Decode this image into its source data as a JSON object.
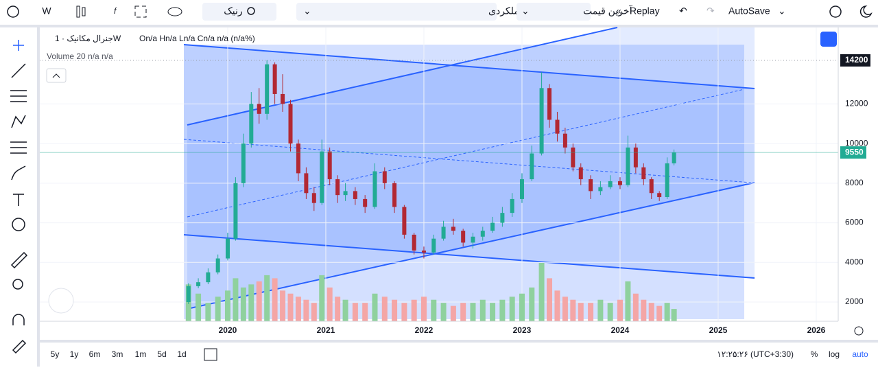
{
  "toolbar": {
    "interval": "W",
    "symbol": "رنیک",
    "chart_style": "عملکردی",
    "price_source": "آخرین قیمت",
    "replay": "Replay",
    "autosave": "AutoSave"
  },
  "chart_data": {
    "type": "candlestick",
    "title": "جنرال مکانیک · 1W",
    "ohlc_text": "On/a Hn/a Ln/a Cn/a n/a (n/a%)",
    "volume_label": "Volume 20 n/a n/a",
    "x": [
      2019.6,
      2019.7,
      2019.8,
      2019.9,
      2020.0,
      2020.08,
      2020.16,
      2020.24,
      2020.32,
      2020.4,
      2020.48,
      2020.56,
      2020.64,
      2020.72,
      2020.8,
      2020.88,
      2020.96,
      2021.04,
      2021.12,
      2021.2,
      2021.3,
      2021.4,
      2021.5,
      2021.6,
      2021.7,
      2021.8,
      2021.9,
      2022.0,
      2022.1,
      2022.2,
      2022.3,
      2022.4,
      2022.5,
      2022.6,
      2022.7,
      2022.8,
      2022.9,
      2023.0,
      2023.1,
      2023.2,
      2023.28,
      2023.36,
      2023.44,
      2023.52,
      2023.6,
      2023.7,
      2023.8,
      2023.9,
      2024.0,
      2024.08,
      2024.16,
      2024.24,
      2024.32,
      2024.4,
      2024.48,
      2024.55
    ],
    "open": [
      2000,
      2800,
      3000,
      3500,
      4200,
      5200,
      8000,
      10000,
      12000,
      11500,
      14000,
      12500,
      12000,
      10000,
      8500,
      7500,
      7000,
      9600,
      8200,
      7400,
      7600,
      7200,
      6800,
      8600,
      8000,
      6800,
      5400,
      4600,
      4500,
      5200,
      5800,
      5600,
      5000,
      5300,
      5600,
      6000,
      6500,
      7200,
      8200,
      9500,
      12800,
      11200,
      10500,
      9800,
      8800,
      8200,
      7600,
      7800,
      8100,
      7900,
      9800,
      8800,
      8200,
      7500,
      7300,
      9000
    ],
    "high": [
      2950,
      3200,
      3700,
      4400,
      5500,
      8300,
      10500,
      12600,
      12800,
      14200,
      14100,
      13500,
      12200,
      10200,
      8800,
      7800,
      10200,
      9800,
      8400,
      8000,
      7800,
      7400,
      9000,
      8800,
      8100,
      6900,
      5500,
      4800,
      5400,
      6100,
      6200,
      5700,
      5500,
      5800,
      6300,
      6800,
      7500,
      8500,
      9900,
      13600,
      13000,
      11600,
      10800,
      10000,
      9000,
      8400,
      8100,
      8400,
      8300,
      10400,
      10000,
      9000,
      8300,
      7600,
      9300,
      9700
    ],
    "low": [
      1900,
      2700,
      2900,
      3400,
      4100,
      5100,
      7800,
      9800,
      11000,
      11200,
      12000,
      11600,
      9600,
      8100,
      7200,
      6600,
      6900,
      7900,
      7000,
      7100,
      6900,
      6500,
      6700,
      7700,
      6500,
      5200,
      4400,
      4200,
      4400,
      5100,
      5400,
      4800,
      4700,
      5100,
      5500,
      5800,
      6300,
      7000,
      8100,
      9400,
      10800,
      10100,
      9500,
      8600,
      7900,
      7200,
      7400,
      7700,
      7700,
      7800,
      8500,
      7900,
      7200,
      7100,
      7200,
      8900
    ],
    "close": [
      2800,
      3000,
      3500,
      4200,
      5200,
      8000,
      10000,
      12000,
      11500,
      14000,
      12500,
      12000,
      10000,
      8500,
      7500,
      7000,
      9600,
      8200,
      7400,
      7600,
      7200,
      6800,
      8600,
      8000,
      6800,
      5400,
      4600,
      4500,
      5200,
      5800,
      5600,
      5000,
      5300,
      5600,
      6000,
      6500,
      7200,
      8200,
      9500,
      12800,
      11200,
      10500,
      9800,
      8800,
      8200,
      7600,
      7800,
      8100,
      7900,
      9800,
      8800,
      8200,
      7500,
      7300,
      9000,
      9550
    ],
    "volume": [
      60,
      45,
      30,
      40,
      50,
      70,
      55,
      60,
      65,
      75,
      70,
      50,
      45,
      40,
      35,
      30,
      75,
      55,
      40,
      35,
      30,
      30,
      45,
      40,
      35,
      30,
      35,
      40,
      35,
      30,
      25,
      30,
      30,
      35,
      30,
      35,
      40,
      45,
      55,
      95,
      70,
      50,
      40,
      35,
      30,
      30,
      35,
      30,
      35,
      65,
      45,
      35,
      30,
      25,
      30,
      20
    ],
    "up_color": "#22ab94",
    "down_color": "#b22833",
    "volume_up_color": "#8fd19e",
    "volume_down_color": "#f4a6a6",
    "xlim": [
      2018.084,
      2026.224
    ],
    "xticks": [
      2020,
      2021,
      2022,
      2023,
      2024,
      2025,
      2026
    ],
    "ylim": [
      1030,
      15860
    ],
    "yticks": [
      2000,
      4000,
      6000,
      8000,
      10000,
      12000
    ],
    "high_marker": 14200,
    "last_price": 9550,
    "grid": true
  },
  "bottom": {
    "ranges": [
      "5y",
      "1y",
      "6m",
      "3m",
      "1m",
      "5d",
      "1d"
    ],
    "clock": "۱۲:۲۵:۲۶ (UTC+3:30)",
    "percent": "%",
    "log": "log",
    "auto": "auto"
  }
}
